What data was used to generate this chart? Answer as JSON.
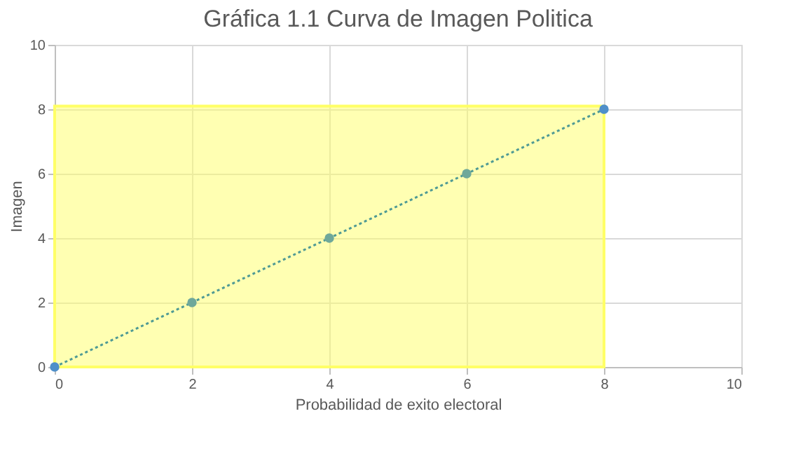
{
  "chart_data": {
    "type": "line",
    "title": "Gráfica 1.1 Curva de Imagen Politica",
    "xlabel": "Probabilidad de exito electoral",
    "ylabel": "Imagen",
    "xlim": [
      0,
      10
    ],
    "xticks": [
      0,
      2,
      4,
      6,
      8,
      10
    ],
    "ylim": [
      0,
      10
    ],
    "yticks": [
      0,
      2,
      4,
      6,
      8,
      10
    ],
    "grid": true,
    "series": [
      {
        "type": "area",
        "color": "#ffff66",
        "x": [
          0,
          8
        ],
        "values": [
          8.1,
          8.1
        ]
      },
      {
        "color": "#4f9a94",
        "line_style": "dotted",
        "marker": "circle",
        "x": [
          0,
          2,
          4,
          6,
          8
        ],
        "values": [
          0,
          2,
          4,
          6,
          8
        ],
        "colors": [
          "#4f8fc9",
          "#6fa89a",
          "#6fa89a",
          "#6fa89a",
          "#4f8fc9"
        ]
      }
    ]
  }
}
